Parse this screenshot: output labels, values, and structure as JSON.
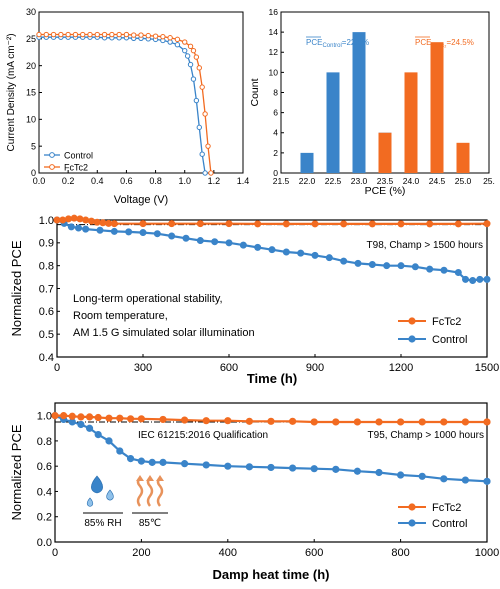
{
  "colors": {
    "control": "#3a84c9",
    "fctc2": "#f26b21",
    "ref_line": "#000000"
  },
  "chart_data": [
    {
      "type": "line",
      "panel": "jv",
      "xlabel": "Voltage (V)",
      "ylabel": "Current Density (mA cm⁻²)",
      "xlim": [
        0.0,
        1.4
      ],
      "ylim": [
        0,
        30
      ],
      "xticks": [
        "0.0",
        "0.2",
        "0.4",
        "0.6",
        "0.8",
        "1.0",
        "1.2",
        "1.4"
      ],
      "yticks": [
        "0",
        "5",
        "10",
        "15",
        "20",
        "25",
        "30"
      ],
      "legend": "bottom-left",
      "series": [
        {
          "name": "Control",
          "color": "#3a84c9",
          "x": [
            0,
            0.05,
            0.1,
            0.15,
            0.2,
            0.25,
            0.3,
            0.35,
            0.4,
            0.45,
            0.5,
            0.55,
            0.6,
            0.65,
            0.7,
            0.75,
            0.8,
            0.85,
            0.9,
            0.95,
            1.0,
            1.02,
            1.04,
            1.06,
            1.08,
            1.1,
            1.12,
            1.14
          ],
          "y": [
            25.3,
            25.3,
            25.3,
            25.3,
            25.3,
            25.3,
            25.3,
            25.3,
            25.3,
            25.2,
            25.2,
            25.2,
            25.2,
            25.1,
            25.1,
            25.0,
            24.9,
            24.7,
            24.4,
            23.9,
            22.8,
            21.8,
            20.2,
            17.5,
            13.5,
            8.5,
            3.5,
            0
          ]
        },
        {
          "name": "FcTc2",
          "color": "#f26b21",
          "x": [
            0,
            0.05,
            0.1,
            0.15,
            0.2,
            0.25,
            0.3,
            0.35,
            0.4,
            0.45,
            0.5,
            0.55,
            0.6,
            0.65,
            0.7,
            0.75,
            0.8,
            0.85,
            0.9,
            0.95,
            1.0,
            1.04,
            1.06,
            1.08,
            1.1,
            1.12,
            1.14,
            1.16,
            1.18
          ],
          "y": [
            25.8,
            25.8,
            25.8,
            25.8,
            25.8,
            25.8,
            25.8,
            25.8,
            25.8,
            25.8,
            25.8,
            25.8,
            25.8,
            25.7,
            25.7,
            25.6,
            25.5,
            25.4,
            25.2,
            24.9,
            24.4,
            23.6,
            22.8,
            21.6,
            19.6,
            16.0,
            11.0,
            5.0,
            0
          ]
        }
      ]
    },
    {
      "type": "bar",
      "panel": "histogram",
      "xlabel": "PCE (%)",
      "ylabel": "Count",
      "xlim": [
        21.5,
        25.5
      ],
      "ylim": [
        0,
        16
      ],
      "xticks": [
        "21.5",
        "22.0",
        "22.5",
        "23.0",
        "23.5",
        "24.0",
        "24.5",
        "25.0",
        "25."
      ],
      "yticks": [
        "0",
        "2",
        "4",
        "6",
        "8",
        "10",
        "12",
        "14",
        "16"
      ],
      "series": [
        {
          "name": "Control",
          "color": "#3a84c9",
          "x": [
            22.0,
            22.5,
            23.0,
            23.5
          ],
          "values": [
            2,
            10,
            14,
            4
          ]
        },
        {
          "name": "FcTc2",
          "color": "#f26b21",
          "x": [
            23.5,
            24.0,
            24.5,
            25.0
          ],
          "values": [
            4,
            10,
            13,
            3
          ]
        }
      ],
      "annotations": {
        "control_mean": "22.5%",
        "fctc2_mean": "24.5%"
      }
    },
    {
      "type": "line",
      "panel": "stability_light",
      "xlabel": "Time (h)",
      "ylabel": "Normalized PCE",
      "xlim": [
        0,
        1500
      ],
      "ylim": [
        0.4,
        1.0
      ],
      "xticks": [
        "0",
        "300",
        "600",
        "900",
        "1200",
        "1500"
      ],
      "yticks": [
        "0.4",
        "0.5",
        "0.6",
        "0.7",
        "0.8",
        "0.9",
        "1.0"
      ],
      "reference_y": 0.98,
      "annotation": "T98, Champ > 1500 hours",
      "conditions": [
        "Long-term operational stability,",
        "Room temperature,",
        "AM 1.5 G simulated solar illumination"
      ],
      "legend": "bottom-right",
      "series": [
        {
          "name": "FcTc2",
          "color": "#f26b21",
          "x": [
            0,
            20,
            40,
            60,
            80,
            100,
            120,
            140,
            160,
            180,
            200,
            300,
            400,
            500,
            600,
            700,
            800,
            900,
            1000,
            1100,
            1200,
            1300,
            1400,
            1500
          ],
          "y": [
            1.0,
            1.0,
            1.005,
            1.008,
            1.005,
            1.0,
            0.995,
            0.99,
            0.988,
            0.985,
            0.984,
            0.984,
            0.984,
            0.984,
            0.984,
            0.983,
            0.983,
            0.983,
            0.983,
            0.983,
            0.983,
            0.983,
            0.983,
            0.984
          ]
        },
        {
          "name": "Control",
          "color": "#3a84c9",
          "x": [
            0,
            25,
            50,
            75,
            100,
            150,
            200,
            250,
            300,
            350,
            400,
            450,
            500,
            550,
            600,
            650,
            700,
            750,
            800,
            850,
            900,
            950,
            1000,
            1050,
            1100,
            1150,
            1200,
            1250,
            1300,
            1350,
            1400,
            1425,
            1450,
            1475,
            1500
          ],
          "y": [
            1.0,
            0.985,
            0.97,
            0.965,
            0.96,
            0.955,
            0.95,
            0.948,
            0.945,
            0.94,
            0.93,
            0.92,
            0.91,
            0.905,
            0.9,
            0.89,
            0.88,
            0.87,
            0.86,
            0.855,
            0.845,
            0.835,
            0.82,
            0.81,
            0.805,
            0.8,
            0.8,
            0.795,
            0.785,
            0.78,
            0.77,
            0.74,
            0.735,
            0.74,
            0.74
          ]
        }
      ]
    },
    {
      "type": "line",
      "panel": "stability_damp_heat",
      "xlabel": "Damp heat time (h)",
      "ylabel": "Normalized PCE",
      "xlim": [
        0,
        1000
      ],
      "ylim": [
        0.0,
        1.1
      ],
      "xticks": [
        "0",
        "200",
        "400",
        "600",
        "800",
        "1000"
      ],
      "yticks": [
        "0.0",
        "0.2",
        "0.4",
        "0.6",
        "0.8",
        "1.0"
      ],
      "reference_y": 0.95,
      "annotations": {
        "qualification": "IEC 61215:2016 Qualification",
        "t95": "T95, Champ > 1000 hours",
        "rh": "85% RH",
        "temp": "85℃"
      },
      "legend": "bottom-right",
      "series": [
        {
          "name": "FcTc2",
          "color": "#f26b21",
          "x": [
            0,
            20,
            40,
            60,
            80,
            100,
            125,
            150,
            175,
            200,
            250,
            300,
            350,
            400,
            450,
            500,
            550,
            600,
            650,
            700,
            750,
            800,
            850,
            900,
            950,
            1000
          ],
          "y": [
            1.0,
            1.0,
            0.995,
            0.99,
            0.99,
            0.985,
            0.98,
            0.98,
            0.975,
            0.975,
            0.97,
            0.965,
            0.96,
            0.96,
            0.955,
            0.955,
            0.955,
            0.95,
            0.95,
            0.95,
            0.95,
            0.95,
            0.95,
            0.95,
            0.95,
            0.95
          ]
        },
        {
          "name": "Control",
          "color": "#3a84c9",
          "x": [
            0,
            20,
            40,
            60,
            80,
            100,
            125,
            150,
            175,
            200,
            225,
            250,
            300,
            350,
            400,
            450,
            500,
            550,
            600,
            650,
            700,
            750,
            800,
            850,
            900,
            950,
            1000
          ],
          "y": [
            1.0,
            0.97,
            0.95,
            0.93,
            0.9,
            0.85,
            0.8,
            0.72,
            0.66,
            0.64,
            0.63,
            0.63,
            0.62,
            0.61,
            0.6,
            0.595,
            0.59,
            0.585,
            0.58,
            0.575,
            0.56,
            0.55,
            0.53,
            0.52,
            0.5,
            0.49,
            0.48
          ]
        }
      ]
    }
  ]
}
